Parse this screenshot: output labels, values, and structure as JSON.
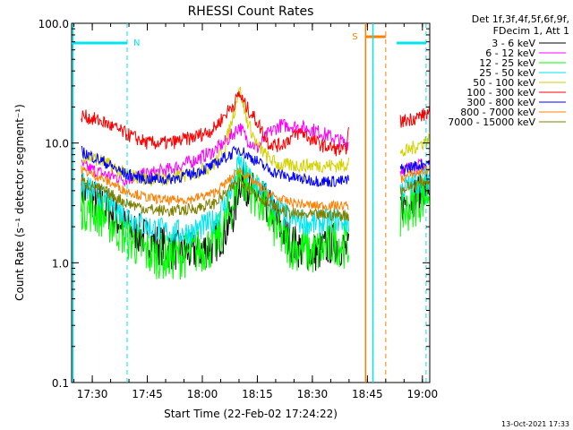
{
  "chart_data": {
    "type": "line",
    "title": "RHESSI Count Rates",
    "xlabel": "Start Time (22-Feb-02 17:24:22)",
    "ylabel": "Count Rate (s⁻¹ detector segment⁻¹)",
    "ylim": [
      0.1,
      100
    ],
    "yscale": "log",
    "xlim": [
      "17:24:22",
      "19:02:00"
    ],
    "x_tick_labels": [
      "17:30",
      "17:45",
      "18:00",
      "18:15",
      "18:30",
      "18:45",
      "19:00"
    ],
    "y_tick_labels": [
      "0.1",
      "1.0",
      "10.0",
      "100.0"
    ],
    "legend": {
      "header_line1": "Det 1f,3f,4f,5f,6f,9f,",
      "header_line2": "FDecim 1, Att 1",
      "placement": "right"
    },
    "footer_timestamp": "13-Oct-2021 17:33",
    "markers": [
      {
        "label": "N",
        "color": "#00e5ee"
      },
      {
        "label": "S",
        "color": "#ff8000"
      }
    ],
    "x": [
      "17:27",
      "17:33",
      "17:39",
      "17:45",
      "17:51",
      "17:57",
      "18:03",
      "18:06",
      "18:09",
      "18:10",
      "18:12",
      "18:15",
      "18:18",
      "18:21",
      "18:24",
      "18:27",
      "18:30",
      "18:33",
      "18:36",
      "18:39",
      "18:40"
    ],
    "x_tail": [
      "18:54",
      "18:57",
      "19:00",
      "19:02"
    ],
    "series": [
      {
        "name": "3 - 6 keV",
        "color": "#000000",
        "values": [
          4.0,
          3.0,
          2.0,
          1.6,
          1.3,
          1.2,
          1.4,
          1.8,
          2.8,
          5.0,
          4.5,
          3.5,
          3.0,
          2.0,
          1.5,
          1.3,
          1.2,
          1.3,
          1.5,
          1.3,
          1.2
        ],
        "tail": [
          3.0,
          3.5,
          4.0,
          4.5
        ]
      },
      {
        "name": "6 - 12 keV",
        "color": "#ff00ff",
        "values": [
          6.5,
          5.5,
          5.0,
          5.5,
          6.0,
          7.0,
          8.5,
          10.0,
          12.5,
          14.0,
          11.0,
          9.0,
          12.0,
          14.0,
          14.0,
          13.5,
          13.0,
          12.0,
          11.0,
          10.0,
          10.0
        ],
        "tail": [
          6.0,
          6.2,
          6.5,
          6.8
        ]
      },
      {
        "name": "12 - 25 keV",
        "color": "#00ff00",
        "values": [
          3.0,
          2.5,
          1.7,
          1.2,
          1.1,
          1.2,
          1.4,
          2.0,
          3.5,
          5.5,
          4.5,
          3.5,
          2.5,
          1.7,
          1.4,
          1.3,
          1.2,
          1.3,
          1.5,
          1.4,
          1.3
        ],
        "tail": [
          2.5,
          3.0,
          3.5,
          4.0
        ]
      },
      {
        "name": "25 - 50 keV",
        "color": "#00e5ee",
        "values": [
          4.5,
          3.5,
          2.5,
          2.0,
          1.8,
          1.8,
          2.2,
          3.0,
          5.0,
          7.0,
          5.5,
          4.5,
          3.5,
          2.7,
          2.3,
          2.2,
          2.1,
          2.2,
          2.3,
          2.2,
          2.2
        ],
        "tail": [
          4.0,
          4.5,
          5.0,
          5.2
        ]
      },
      {
        "name": "50 - 100 keV",
        "color": "#d2d200",
        "values": [
          8.0,
          7.0,
          5.5,
          5.0,
          5.0,
          5.5,
          6.5,
          9.0,
          20.0,
          30.0,
          16.0,
          9.5,
          7.5,
          6.5,
          6.5,
          6.5,
          6.5,
          6.5,
          6.5,
          6.5,
          7.5
        ],
        "tail": [
          8.0,
          9.0,
          10.0,
          11.0
        ]
      },
      {
        "name": "100 - 300 keV",
        "color": "#ff0000",
        "values": [
          17.0,
          15.0,
          12.0,
          10.0,
          10.0,
          11.0,
          13.0,
          17.0,
          22.0,
          26.0,
          20.0,
          15.0,
          10.0,
          9.5,
          11.0,
          12.5,
          10.5,
          9.5,
          9.0,
          8.5,
          13.0
        ],
        "tail": [
          15.0,
          16.0,
          17.0,
          18.0
        ]
      },
      {
        "name": "300 - 800 keV",
        "color": "#0000ff",
        "values": [
          8.5,
          7.0,
          5.5,
          5.0,
          5.0,
          5.5,
          6.5,
          7.5,
          8.5,
          9.0,
          8.0,
          7.0,
          6.0,
          5.5,
          5.2,
          5.0,
          4.9,
          4.8,
          4.8,
          4.8,
          5.0
        ],
        "tail": [
          6.0,
          6.3,
          6.6,
          7.0
        ]
      },
      {
        "name": "800 - 7000 keV",
        "color": "#ff8000",
        "values": [
          6.0,
          5.0,
          4.0,
          3.5,
          3.3,
          3.4,
          3.8,
          4.5,
          5.5,
          6.0,
          5.3,
          4.5,
          3.8,
          3.4,
          3.2,
          3.1,
          3.0,
          3.0,
          3.0,
          3.0,
          3.0
        ],
        "tail": [
          5.0,
          5.5,
          5.8,
          6.0
        ]
      },
      {
        "name": "7000 - 15000 keV",
        "color": "#808000",
        "values": [
          4.8,
          4.0,
          3.2,
          2.8,
          2.7,
          2.8,
          3.1,
          3.7,
          4.5,
          5.0,
          4.4,
          3.7,
          3.1,
          2.8,
          2.6,
          2.5,
          2.5,
          2.5,
          2.5,
          2.5,
          2.5
        ],
        "tail": [
          4.0,
          4.4,
          4.7,
          5.0
        ]
      }
    ],
    "grid": false
  }
}
